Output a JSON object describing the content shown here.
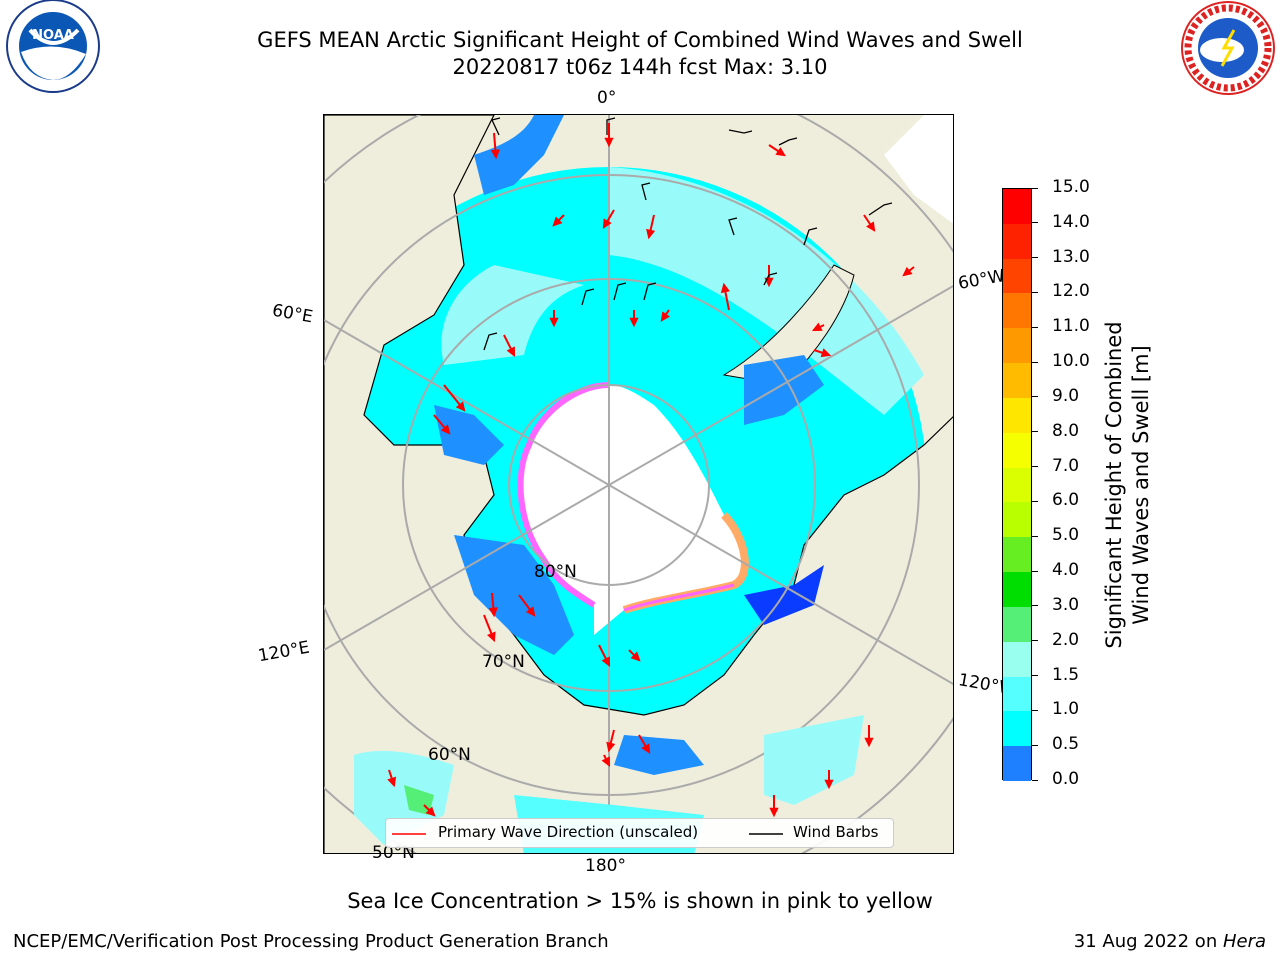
{
  "title_line1": "GEFS MEAN Arctic Significant Height of Combined Wind Waves and Swell",
  "title_line2": "20220817 t06z 144h fcst   Max: 3.10",
  "logos": {
    "left": "NOAA",
    "right": "NATIONAL WEATHER SERVICE"
  },
  "map": {
    "lon_labels": {
      "top": "0°",
      "bottom": "180°",
      "left_upper": "60°E",
      "left_lower": "120°E",
      "right_upper": "60°W",
      "right_lower": "120°W"
    },
    "lat_labels": {
      "lat80": "80°N",
      "lat70": "70°N",
      "lat60": "60°N",
      "lat50": "50°N"
    },
    "legend": {
      "wave_dir": "Primary Wave Direction (unscaled)",
      "wind_barbs": "Wind Barbs"
    },
    "colors": {
      "land": "#efeedd",
      "ice": "#ffffff",
      "wave_low": "#00ffff",
      "wave_mid": "#98fbf9",
      "wave_blue": "#1e90ff",
      "wave_dark": "#0a3cff",
      "ice_edge": "#ff66ff",
      "arrow": "#ff0000"
    }
  },
  "colorbar": {
    "label_line1": "Significant Height of Combined",
    "label_line2": "Wind Waves and Swell [m]",
    "ticks": [
      "15.0",
      "14.0",
      "13.0",
      "12.0",
      "11.0",
      "10.0",
      "9.0",
      "8.0",
      "7.0",
      "6.0",
      "5.0",
      "4.0",
      "3.0",
      "2.0",
      "1.5",
      "1.0",
      "0.5",
      "0.0"
    ],
    "colors": [
      "#ff0000",
      "#ff2200",
      "#ff4400",
      "#ff7700",
      "#ff9900",
      "#ffbb00",
      "#ffe600",
      "#f5ff00",
      "#d9ff00",
      "#b9ff00",
      "#66ee22",
      "#00dd00",
      "#55ee77",
      "#99ffee",
      "#55ffff",
      "#00ffff",
      "#1e7fff",
      "#0000ff"
    ]
  },
  "subnote": "Sea Ice Concentration > 15% is shown in pink to yellow",
  "footer_left": "NCEP/EMC/Verification Post Processing Product Generation Branch",
  "footer_right_date": "31 Aug 2022 on ",
  "footer_right_host": "Hera"
}
